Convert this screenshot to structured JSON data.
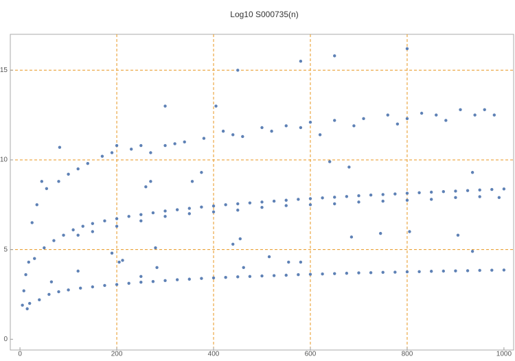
{
  "chart_data": {
    "type": "scatter",
    "title": "Log10 S000735(n)",
    "xlim": [
      -20,
      1020
    ],
    "ylim": [
      -0.6,
      17
    ],
    "xticks": [
      0,
      200,
      400,
      600,
      800,
      1000
    ],
    "yticks": [
      0,
      5,
      10,
      15
    ],
    "grid": true,
    "grid_x": [
      200,
      400,
      600,
      800
    ],
    "grid_y": [
      5,
      10,
      15
    ],
    "series": [
      {
        "color": "#5e81b5",
        "x": [
          20,
          40,
          60,
          80,
          100,
          125,
          150,
          175,
          200,
          225,
          250,
          275,
          300,
          325,
          350,
          375,
          400,
          425,
          450,
          475,
          500,
          525,
          550,
          575,
          600,
          625,
          650,
          675,
          700,
          725,
          750,
          775,
          800,
          825,
          850,
          875,
          900,
          925,
          950,
          975,
          1000,
          30,
          50,
          70,
          90,
          110,
          130,
          150,
          175,
          200,
          225,
          250,
          275,
          300,
          325,
          350,
          375,
          400,
          425,
          450,
          475,
          500,
          525,
          550,
          575,
          600,
          625,
          650,
          675,
          700,
          725,
          750,
          775,
          800,
          825,
          850,
          875,
          900,
          925,
          950,
          975,
          1000,
          120,
          150,
          200,
          250,
          300,
          350,
          400,
          450,
          500,
          550,
          600,
          650,
          700,
          750,
          800,
          850,
          900,
          950,
          990,
          80,
          100,
          120,
          140,
          170,
          190,
          200,
          230,
          250,
          270,
          300,
          320,
          340,
          380,
          420,
          440,
          460,
          500,
          520,
          550,
          580,
          600,
          620,
          650,
          690,
          710,
          760,
          780,
          800,
          830,
          860,
          880,
          910,
          940,
          960,
          980,
          15,
          5,
          8,
          12,
          18,
          25,
          35,
          45,
          55,
          82,
          65,
          120,
          190,
          205,
          212,
          260,
          270,
          300,
          405,
          280,
          283,
          356,
          375,
          450,
          580,
          650,
          800,
          440,
          455,
          462,
          515,
          555,
          580,
          640,
          680,
          685,
          745,
          805,
          905,
          935,
          935,
          250
        ],
        "values": [
          2.0,
          2.2,
          2.5,
          2.65,
          2.75,
          2.85,
          2.92,
          3.0,
          3.05,
          3.12,
          3.18,
          3.22,
          3.27,
          3.32,
          3.35,
          3.39,
          3.42,
          3.45,
          3.48,
          3.5,
          3.53,
          3.55,
          3.57,
          3.6,
          3.62,
          3.64,
          3.66,
          3.68,
          3.7,
          3.71,
          3.73,
          3.74,
          3.76,
          3.77,
          3.79,
          3.8,
          3.81,
          3.82,
          3.84,
          3.85,
          3.86,
          4.5,
          5.1,
          5.5,
          5.8,
          6.1,
          6.3,
          6.45,
          6.6,
          6.72,
          6.85,
          6.95,
          7.05,
          7.15,
          7.22,
          7.3,
          7.37,
          7.43,
          7.5,
          7.55,
          7.6,
          7.65,
          7.7,
          7.75,
          7.8,
          7.84,
          7.88,
          7.92,
          7.96,
          8.0,
          8.04,
          8.07,
          8.1,
          8.14,
          8.17,
          8.2,
          8.23,
          8.26,
          8.29,
          8.32,
          8.35,
          8.38,
          5.8,
          6.0,
          6.3,
          6.6,
          6.85,
          7.0,
          7.1,
          7.2,
          7.35,
          7.45,
          7.5,
          7.55,
          7.65,
          7.7,
          7.75,
          7.8,
          7.9,
          7.95,
          7.9,
          8.8,
          9.2,
          9.5,
          9.8,
          10.2,
          10.4,
          10.8,
          10.6,
          10.8,
          10.4,
          10.8,
          10.9,
          11.0,
          11.2,
          11.6,
          11.4,
          11.3,
          11.8,
          11.6,
          11.9,
          11.8,
          12.1,
          11.4,
          12.2,
          11.9,
          12.3,
          12.5,
          12.0,
          12.3,
          12.6,
          12.5,
          12.2,
          12.8,
          12.5,
          12.8,
          12.5,
          1.7,
          1.9,
          2.7,
          3.6,
          4.3,
          6.5,
          7.5,
          8.8,
          8.4,
          10.7,
          3.2,
          3.8,
          4.8,
          4.3,
          4.4,
          8.5,
          8.8,
          13.0,
          13.0,
          5.1,
          4.0,
          8.8,
          9.3,
          15.0,
          15.5,
          15.8,
          16.2,
          5.3,
          5.6,
          4.0,
          4.6,
          4.3,
          4.3,
          9.9,
          9.6,
          5.7,
          5.9,
          6.0,
          5.8,
          9.3,
          4.9,
          3.5
        ]
      }
    ]
  }
}
